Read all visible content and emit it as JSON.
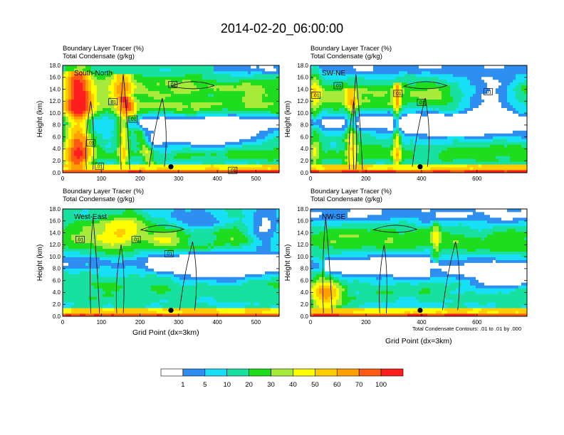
{
  "title": "2014-02-20_06:00:00",
  "header_line1": "Boundary Layer Tracer   (%)",
  "header_line2": "Total Condensate   (g/kg)",
  "y_axis_label": "Height (km)",
  "x_axis_label": "Grid Point (dx=3km)",
  "contour_note": "Total Condensate Contours: .01 to .01 by .000",
  "colors": {
    "levels": [
      "#ffffff",
      "#2f8ff0",
      "#17e0f6",
      "#17e0a0",
      "#1fdc1f",
      "#a8ea3a",
      "#ffff00",
      "#ffcc00",
      "#ffa000",
      "#ff5a14",
      "#ff1e1e"
    ]
  },
  "chart_data": [
    {
      "type": "heatmap",
      "name": "South-North",
      "label": "South-North",
      "xlim": [
        0,
        560
      ],
      "ylim": [
        0,
        18
      ],
      "xticks": [
        "0",
        "100",
        "200",
        "300",
        "400",
        "500"
      ],
      "yticks": [
        "0.0",
        "2.0",
        "4.0",
        "6.0",
        "8.0",
        "10.0",
        "12.0",
        "14.0",
        "16.0",
        "18.0"
      ],
      "marker": [
        280,
        1.0
      ],
      "contour_labels": [
        {
          "x": 285,
          "y": 14.8,
          "text": ".01"
        },
        {
          "x": 130,
          "y": 11.9,
          "text": ".01"
        },
        {
          "x": 182,
          "y": 9.0,
          "text": ".01"
        },
        {
          "x": 73,
          "y": 5.0,
          "text": ".01"
        },
        {
          "x": 95,
          "y": 1.1,
          "text": ".01"
        },
        {
          "x": 440,
          "y": 0.4,
          "text": ".01"
        }
      ]
    },
    {
      "type": "heatmap",
      "name": "SW-NE",
      "label": "SW-NE",
      "xlim": [
        0,
        780
      ],
      "ylim": [
        0,
        18
      ],
      "xticks": [
        "0",
        "200",
        "400",
        "600"
      ],
      "yticks": [
        "0.0",
        "2.0",
        "4.0",
        "6.0",
        "8.0",
        "10.0",
        "12.0",
        "14.0",
        "16.0",
        "18.0"
      ],
      "marker": [
        395,
        1.0
      ],
      "contour_labels": [
        {
          "x": 20,
          "y": 13.0,
          "text": ".01"
        },
        {
          "x": 100,
          "y": 14.6,
          "text": ".01"
        },
        {
          "x": 315,
          "y": 13.3,
          "text": ".01"
        },
        {
          "x": 400,
          "y": 11.8,
          "text": ".01"
        },
        {
          "x": 640,
          "y": 13.6,
          "text": ".01"
        }
      ]
    },
    {
      "type": "heatmap",
      "name": "West-East",
      "label": "West-East",
      "xlim": [
        0,
        560
      ],
      "ylim": [
        0,
        18
      ],
      "xticks": [
        "0",
        "100",
        "200",
        "300",
        "400",
        "500"
      ],
      "yticks": [
        "0.0",
        "2.0",
        "4.0",
        "6.0",
        "8.0",
        "10.0",
        "12.0",
        "14.0",
        "16.0",
        "18.0"
      ],
      "marker": [
        280,
        1.0
      ],
      "contour_labels": [
        {
          "x": 45,
          "y": 12.9,
          "text": ".01"
        },
        {
          "x": 190,
          "y": 12.9,
          "text": ".01"
        },
        {
          "x": 275,
          "y": 10.5,
          "text": ".01"
        }
      ]
    },
    {
      "type": "heatmap",
      "name": "NW-SE",
      "label": "NW-SE",
      "xlim": [
        0,
        780
      ],
      "ylim": [
        0,
        18
      ],
      "xticks": [
        "0",
        "200",
        "400",
        "600"
      ],
      "yticks": [
        "0.0",
        "2.0",
        "4.0",
        "6.0",
        "8.0",
        "10.0",
        "12.0",
        "14.0",
        "16.0",
        "18.0"
      ],
      "marker": [
        395,
        1.0
      ],
      "contour_labels": []
    }
  ],
  "colorbar": {
    "labels": [
      "1",
      "5",
      "10",
      "20",
      "30",
      "40",
      "50",
      "60",
      "70",
      "100"
    ]
  }
}
